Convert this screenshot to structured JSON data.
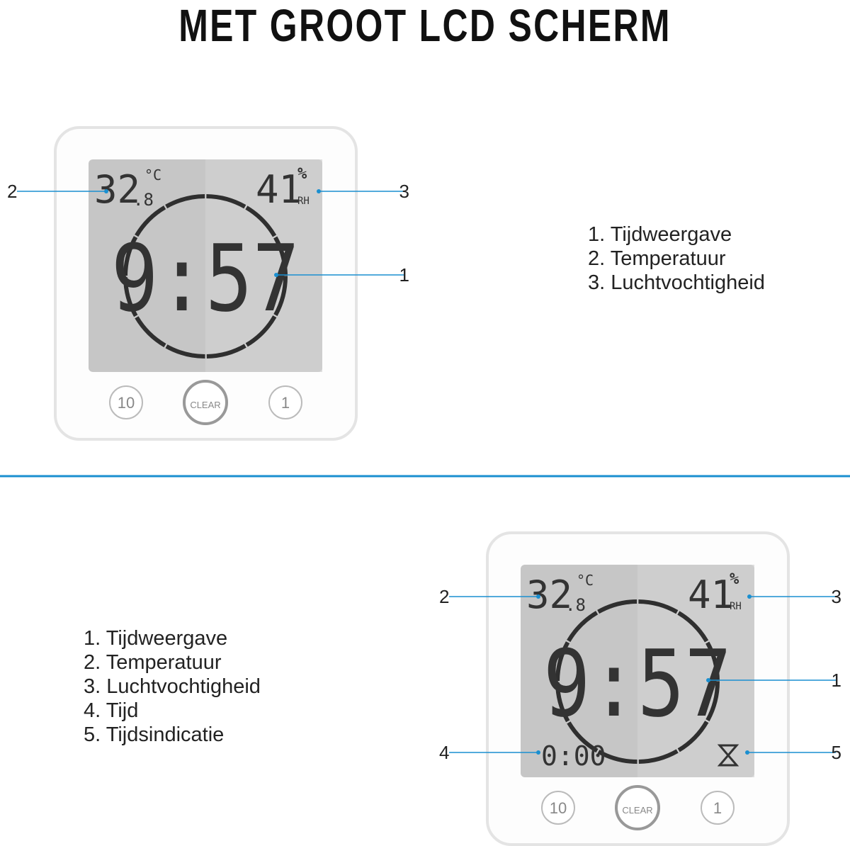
{
  "title": "MET GROOT LCD SCHERM",
  "devices": [
    {
      "display": {
        "temperature": "32",
        "temperature_decimal": ".8",
        "temperature_unit": "°C",
        "humidity": "41",
        "humidity_unit": "%",
        "humidity_label": "RH",
        "time": "9:57"
      },
      "buttons": [
        "10",
        "CLEAR",
        "1"
      ],
      "callouts": [
        "2",
        "3",
        "1"
      ]
    },
    {
      "display": {
        "temperature": "32",
        "temperature_decimal": ".8",
        "temperature_unit": "°C",
        "humidity": "41",
        "humidity_unit": "%",
        "humidity_label": "RH",
        "time": "9:57",
        "timer": "0:00"
      },
      "buttons": [
        "10",
        "CLEAR",
        "1"
      ],
      "callouts": [
        "2",
        "3",
        "1",
        "4",
        "5"
      ]
    }
  ],
  "legends": [
    {
      "items": [
        "1. Tijdweergave",
        "2. Temperatuur",
        "3. Luchtvochtigheid"
      ]
    },
    {
      "items": [
        "1. Tijdweergave",
        "2. Temperatuur",
        "3. Luchtvochtigheid",
        "4. Tijd",
        "5. Tijdsindicatie"
      ]
    }
  ]
}
